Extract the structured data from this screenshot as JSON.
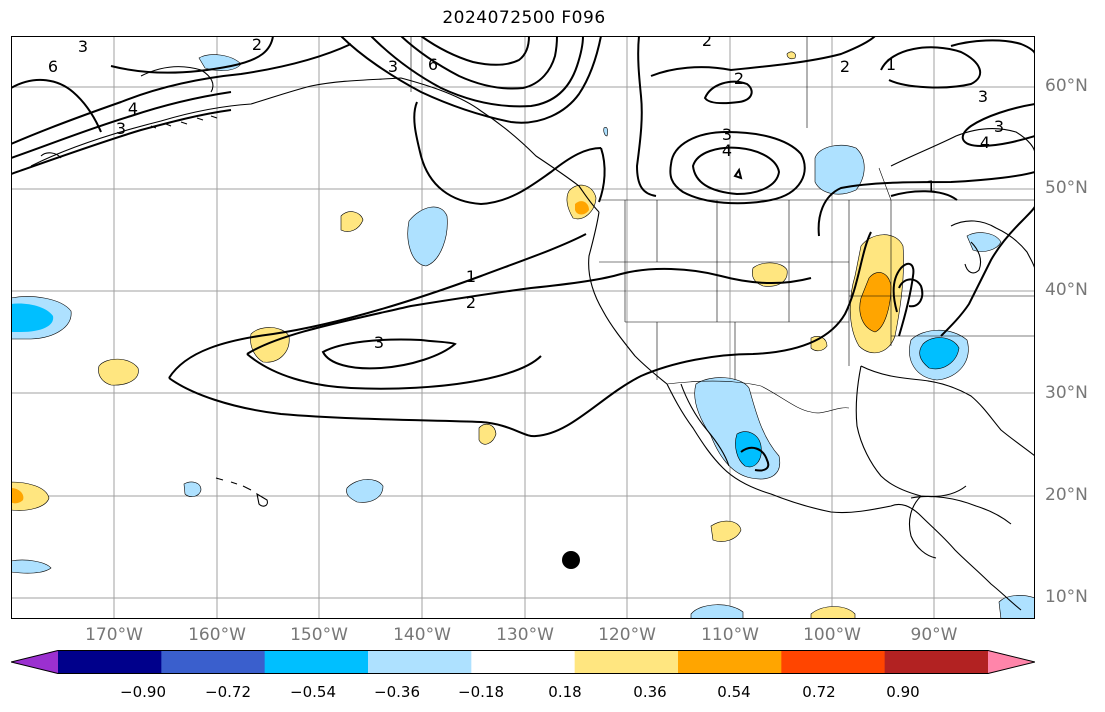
{
  "title": "2024072500 F096",
  "lat_labels": [
    "60°N",
    "50°N",
    "40°N",
    "30°N",
    "20°N",
    "10°N"
  ],
  "lon_labels": [
    "170°W",
    "160°W",
    "150°W",
    "140°W",
    "130°W",
    "120°W",
    "110°W",
    "100°W",
    "90°W"
  ],
  "colorbar": {
    "ticks": [
      "−0.90",
      "−0.72",
      "−0.54",
      "−0.36",
      "−0.18",
      "0.18",
      "0.36",
      "0.54",
      "0.72",
      "0.90"
    ],
    "colors": [
      "#9b30d0",
      "#00008b",
      "#3a5fcd",
      "#00bfff",
      "#aee1ff",
      "#ffffff",
      "#ffe680",
      "#ffa500",
      "#ff4500",
      "#b22222",
      "#ff85aa"
    ]
  },
  "contour_labels": [
    "3",
    "6",
    "2",
    "4",
    "3",
    "3",
    "6",
    "2",
    "2",
    "1",
    "3",
    "3",
    "4",
    "3",
    "4",
    "1",
    "1",
    "2",
    "3",
    "2"
  ]
}
